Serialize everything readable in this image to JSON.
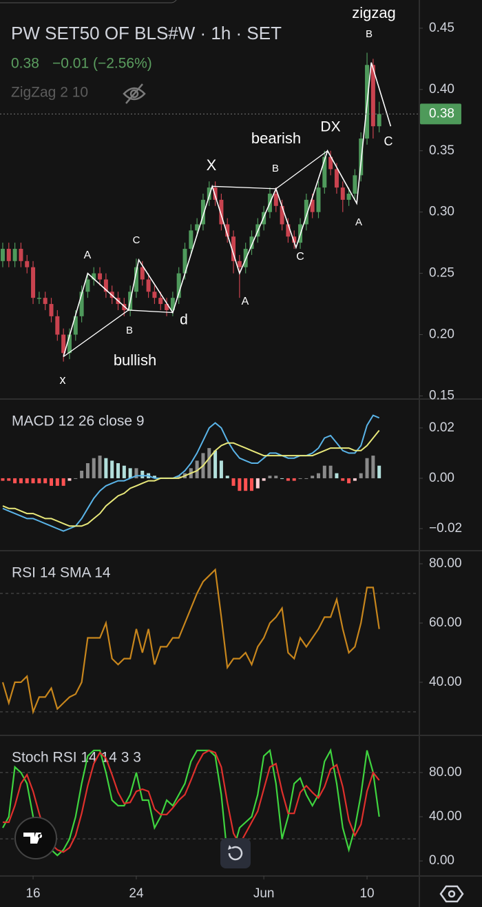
{
  "header": {
    "symbol": "PW SET50 OF BLS#W · 1h · SET",
    "change": "−0.01 (−2.56%)",
    "indicator": "ZigZag 2 10"
  },
  "chart_data": [
    {
      "type": "candlestick",
      "last": 0.38,
      "up_color": "#4f9a5c",
      "down_color": "#c9434f",
      "open": [
        0.26,
        0.27,
        0.26,
        0.27,
        0.26,
        0.255,
        0.23,
        0.23,
        0.225,
        0.215,
        0.2,
        0.185,
        0.2,
        0.215,
        0.235,
        0.245,
        0.25,
        0.245,
        0.235,
        0.23,
        0.225,
        0.22,
        0.235,
        0.255,
        0.245,
        0.235,
        0.23,
        0.225,
        0.22,
        0.23,
        0.25,
        0.27,
        0.285,
        0.29,
        0.31,
        0.32,
        0.31,
        0.29,
        0.28,
        0.26,
        0.255,
        0.27,
        0.28,
        0.29,
        0.3,
        0.315,
        0.305,
        0.29,
        0.28,
        0.275,
        0.29,
        0.31,
        0.3,
        0.32,
        0.345,
        0.335,
        0.32,
        0.31,
        0.315,
        0.33,
        0.36,
        0.42,
        0.37
      ],
      "high": [
        0.275,
        0.275,
        0.275,
        0.275,
        0.265,
        0.26,
        0.235,
        0.235,
        0.23,
        0.22,
        0.205,
        0.205,
        0.22,
        0.24,
        0.25,
        0.255,
        0.255,
        0.25,
        0.24,
        0.235,
        0.23,
        0.24,
        0.262,
        0.26,
        0.25,
        0.24,
        0.235,
        0.23,
        0.235,
        0.255,
        0.275,
        0.29,
        0.295,
        0.315,
        0.325,
        0.325,
        0.315,
        0.295,
        0.285,
        0.265,
        0.275,
        0.285,
        0.295,
        0.305,
        0.32,
        0.32,
        0.31,
        0.295,
        0.285,
        0.295,
        0.315,
        0.315,
        0.325,
        0.35,
        0.35,
        0.34,
        0.325,
        0.32,
        0.335,
        0.365,
        0.43,
        0.425,
        0.39
      ],
      "low": [
        0.255,
        0.255,
        0.255,
        0.255,
        0.25,
        0.225,
        0.225,
        0.22,
        0.21,
        0.195,
        0.178,
        0.18,
        0.195,
        0.21,
        0.23,
        0.24,
        0.24,
        0.23,
        0.225,
        0.22,
        0.215,
        0.215,
        0.23,
        0.24,
        0.23,
        0.225,
        0.22,
        0.215,
        0.215,
        0.225,
        0.245,
        0.265,
        0.28,
        0.285,
        0.305,
        0.305,
        0.285,
        0.275,
        0.25,
        0.23,
        0.25,
        0.265,
        0.275,
        0.285,
        0.295,
        0.3,
        0.285,
        0.275,
        0.27,
        0.27,
        0.285,
        0.295,
        0.295,
        0.315,
        0.33,
        0.315,
        0.3,
        0.305,
        0.31,
        0.325,
        0.355,
        0.36,
        0.365
      ],
      "close": [
        0.27,
        0.26,
        0.27,
        0.26,
        0.255,
        0.23,
        0.23,
        0.225,
        0.215,
        0.2,
        0.185,
        0.2,
        0.215,
        0.235,
        0.245,
        0.25,
        0.245,
        0.235,
        0.23,
        0.225,
        0.22,
        0.235,
        0.255,
        0.245,
        0.235,
        0.23,
        0.225,
        0.22,
        0.23,
        0.25,
        0.27,
        0.285,
        0.29,
        0.31,
        0.32,
        0.31,
        0.29,
        0.28,
        0.26,
        0.255,
        0.27,
        0.28,
        0.29,
        0.3,
        0.315,
        0.305,
        0.29,
        0.28,
        0.275,
        0.29,
        0.31,
        0.3,
        0.32,
        0.345,
        0.335,
        0.32,
        0.31,
        0.315,
        0.33,
        0.36,
        0.42,
        0.37,
        0.38
      ],
      "ylim": [
        0.148,
        0.473
      ],
      "yticks": [
        0.45,
        {
          "value": 0.4,
          "label": "0.40"
        },
        0.35,
        {
          "value": 0.3,
          "label": "0.30"
        },
        0.25,
        {
          "value": 0.2,
          "label": "0.20"
        },
        0.15
      ],
      "zigzag": {
        "color": "#ffffff",
        "x": [
          10,
          14,
          20.7,
          22.4,
          28,
          34.5,
          39,
          45,
          48.3,
          53.5,
          58.3,
          60.7,
          63.9
        ],
        "values": [
          0.182,
          0.25,
          0.22,
          0.261,
          0.218,
          0.321,
          0.25,
          0.319,
          0.271,
          0.35,
          0.307,
          0.422,
          0.37
        ],
        "labels": [
          "x",
          "A",
          "B",
          "C",
          "d",
          "X",
          "A",
          "B",
          "C",
          "DX",
          "A",
          "B",
          "C"
        ]
      },
      "annotations": [
        "bullish",
        "bearish",
        "zigzag"
      ]
    },
    {
      "type": "macd",
      "title": "MACD 12 26 close 9",
      "ylim": [
        -0.0285,
        0.0312
      ],
      "yticks": [
        0.02,
        {
          "value": 0,
          "label": "0.00"
        },
        {
          "value": -0.02,
          "label": "−0.02"
        }
      ],
      "histogram": {
        "colors": [
          "#8a8a8a",
          "#b2dfdb",
          "#ff5252",
          "#ffcdd2"
        ],
        "values": [
          -0.001,
          -0.001,
          -0.002,
          -0.002,
          -0.002,
          -0.002,
          -0.002,
          -0.002,
          -0.003,
          -0.003,
          -0.003,
          -0.001,
          0,
          0.003,
          0.006,
          0.008,
          0.009,
          0.008,
          0.007,
          0.006,
          0.005,
          0.004,
          0.004,
          0.003,
          0.002,
          0.001,
          0,
          0,
          0,
          0.001,
          0.002,
          0.004,
          0.007,
          0.01,
          0.012,
          0.011,
          0.007,
          0.001,
          -0.003,
          -0.005,
          -0.005,
          -0.005,
          -0.004,
          -0.001,
          0.001,
          0.001,
          0,
          -0.001,
          -0.001,
          0,
          0,
          0.001,
          0.002,
          0.005,
          0.005,
          0.002,
          -0.001,
          -0.002,
          -0.001,
          0.002,
          0.008,
          0.009,
          0.005
        ]
      },
      "series": [
        {
          "color": "#5ab4e8",
          "values": [
            -0.012,
            -0.013,
            -0.014,
            -0.015,
            -0.016,
            -0.016,
            -0.017,
            -0.018,
            -0.019,
            -0.02,
            -0.021,
            -0.02,
            -0.019,
            -0.016,
            -0.012,
            -0.008,
            -0.005,
            -0.003,
            -0.002,
            -0.001,
            -0.001,
            0,
            0.001,
            0.001,
            0.001,
            0,
            0,
            0,
            0,
            0.001,
            0.003,
            0.006,
            0.01,
            0.015,
            0.02,
            0.022,
            0.02,
            0.015,
            0.011,
            0.008,
            0.007,
            0.006,
            0.006,
            0.008,
            0.01,
            0.01,
            0.009,
            0.008,
            0.008,
            0.009,
            0.009,
            0.01,
            0.012,
            0.016,
            0.017,
            0.014,
            0.011,
            0.01,
            0.01,
            0.013,
            0.021,
            0.025,
            0.024
          ]
        },
        {
          "color": "#e8e87a",
          "values": [
            -0.011,
            -0.012,
            -0.012,
            -0.013,
            -0.014,
            -0.014,
            -0.015,
            -0.016,
            -0.016,
            -0.017,
            -0.018,
            -0.019,
            -0.019,
            -0.019,
            -0.018,
            -0.016,
            -0.014,
            -0.011,
            -0.009,
            -0.007,
            -0.006,
            -0.004,
            -0.003,
            -0.002,
            -0.001,
            -0.001,
            0,
            0,
            0,
            0,
            0.001,
            0.002,
            0.003,
            0.005,
            0.008,
            0.011,
            0.013,
            0.014,
            0.014,
            0.013,
            0.012,
            0.011,
            0.01,
            0.009,
            0.009,
            0.009,
            0.009,
            0.009,
            0.009,
            0.009,
            0.009,
            0.009,
            0.01,
            0.011,
            0.012,
            0.012,
            0.012,
            0.012,
            0.011,
            0.011,
            0.013,
            0.016,
            0.019
          ]
        }
      ]
    },
    {
      "type": "line",
      "title": "RSI 14 SMA 14",
      "ylim": [
        22.3,
        84.2
      ],
      "yticks": [
        {
          "value": 80,
          "label": "80.00"
        },
        {
          "value": 60,
          "label": "60.00"
        },
        {
          "value": 40,
          "label": "40.00"
        }
      ],
      "bands": [
        70,
        30
      ],
      "series": [
        {
          "color": "#c8861c",
          "values": [
            40,
            33,
            40,
            40,
            42,
            30,
            35,
            35,
            38,
            31,
            33,
            35,
            36,
            40,
            55,
            55,
            55,
            60,
            48,
            46,
            48,
            48,
            58,
            50,
            58,
            46,
            52,
            52,
            55,
            55,
            60,
            65,
            70,
            74,
            76,
            78,
            62,
            45,
            48,
            48,
            50,
            46,
            52,
            55,
            60,
            62,
            65,
            50,
            48,
            55,
            52,
            55,
            58,
            62,
            62,
            68,
            58,
            50,
            52,
            60,
            72,
            72,
            58
          ]
        }
      ]
    },
    {
      "type": "line",
      "title": "Stoch RSI 14 14 3 3",
      "ylim": [
        -13,
        113
      ],
      "yticks": [
        {
          "value": 80,
          "label": "80.00"
        },
        {
          "value": 40,
          "label": "40.00"
        },
        {
          "value": 0,
          "label": "0.00"
        }
      ],
      "bands": [
        80,
        20
      ],
      "xlim": [
        -0.45,
        68.5
      ],
      "xticks": [
        {
          "value": 5,
          "label": "16"
        },
        {
          "value": 22,
          "label": "24"
        },
        {
          "value": 43,
          "label": "Jun"
        },
        {
          "value": 60,
          "label": "10"
        }
      ],
      "series": [
        {
          "color": "#3fd43f",
          "values": [
            30,
            40,
            85,
            80,
            70,
            40,
            20,
            15,
            10,
            5,
            10,
            20,
            40,
            70,
            95,
            100,
            100,
            80,
            55,
            50,
            50,
            60,
            80,
            55,
            55,
            30,
            40,
            55,
            50,
            60,
            70,
            90,
            100,
            100,
            100,
            95,
            60,
            5,
            10,
            30,
            35,
            40,
            60,
            95,
            100,
            70,
            20,
            40,
            70,
            75,
            60,
            50,
            60,
            90,
            100,
            70,
            30,
            10,
            30,
            60,
            100,
            80,
            40
          ]
        },
        {
          "color": "#e0302c",
          "values": [
            35,
            35,
            50,
            70,
            78,
            63,
            43,
            25,
            15,
            10,
            8,
            12,
            23,
            43,
            68,
            88,
            98,
            93,
            78,
            62,
            52,
            53,
            63,
            65,
            63,
            47,
            42,
            42,
            48,
            55,
            60,
            73,
            87,
            97,
            100,
            98,
            85,
            53,
            25,
            15,
            25,
            35,
            45,
            65,
            85,
            88,
            63,
            43,
            43,
            62,
            68,
            62,
            57,
            67,
            83,
            87,
            67,
            37,
            23,
            33,
            63,
            80,
            73
          ]
        }
      ]
    }
  ]
}
